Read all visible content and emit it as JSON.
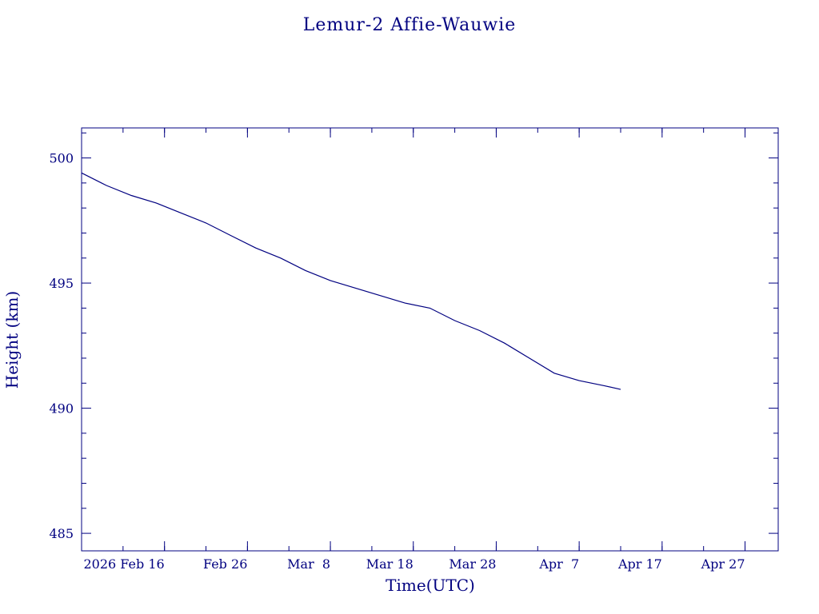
{
  "chart_data": {
    "type": "line",
    "title": "Lemur-2 Affie-Wauwie",
    "xlabel": "Time(UTC)",
    "ylabel": "Height (km)",
    "line_color": "#000080",
    "xlim": [
      "2026-02-06",
      "2026-05-01"
    ],
    "ylim": [
      484.3,
      501.2
    ],
    "x_ticks": [
      {
        "date": "2026-02-16",
        "label": "2026 Feb 16"
      },
      {
        "date": "2026-02-26",
        "label": "Feb 26"
      },
      {
        "date": "2026-03-08",
        "label": "Mar  8"
      },
      {
        "date": "2026-03-18",
        "label": "Mar 18"
      },
      {
        "date": "2026-03-28",
        "label": "Mar 28"
      },
      {
        "date": "2026-04-07",
        "label": "Apr  7"
      },
      {
        "date": "2026-04-17",
        "label": "Apr 17"
      },
      {
        "date": "2026-04-27",
        "label": "Apr 27"
      }
    ],
    "y_ticks": [
      485,
      490,
      495,
      500
    ],
    "grid": false,
    "series": [
      {
        "points": [
          {
            "date": "2026-02-06",
            "y": 499.4
          },
          {
            "date": "2026-02-09",
            "y": 498.9
          },
          {
            "date": "2026-02-12",
            "y": 498.5
          },
          {
            "date": "2026-02-15",
            "y": 498.2
          },
          {
            "date": "2026-02-18",
            "y": 497.8
          },
          {
            "date": "2026-02-21",
            "y": 497.4
          },
          {
            "date": "2026-02-24",
            "y": 496.9
          },
          {
            "date": "2026-02-27",
            "y": 496.4
          },
          {
            "date": "2026-03-02",
            "y": 496.0
          },
          {
            "date": "2026-03-05",
            "y": 495.5
          },
          {
            "date": "2026-03-08",
            "y": 495.1
          },
          {
            "date": "2026-03-11",
            "y": 494.8
          },
          {
            "date": "2026-03-14",
            "y": 494.5
          },
          {
            "date": "2026-03-17",
            "y": 494.2
          },
          {
            "date": "2026-03-20",
            "y": 494.0
          },
          {
            "date": "2026-03-23",
            "y": 493.5
          },
          {
            "date": "2026-03-26",
            "y": 493.1
          },
          {
            "date": "2026-03-29",
            "y": 492.6
          },
          {
            "date": "2026-04-01",
            "y": 492.0
          },
          {
            "date": "2026-04-04",
            "y": 491.4
          },
          {
            "date": "2026-04-07",
            "y": 491.1
          },
          {
            "date": "2026-04-10",
            "y": 490.9
          },
          {
            "date": "2026-04-12",
            "y": 490.75
          }
        ]
      }
    ]
  }
}
